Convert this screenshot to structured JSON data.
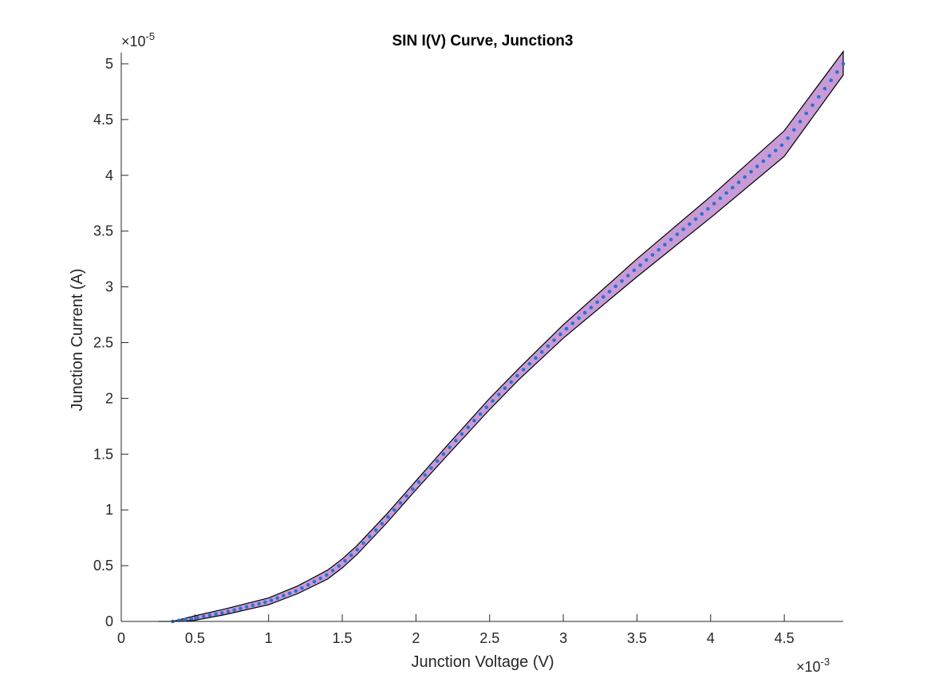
{
  "chart_data": {
    "type": "scatter",
    "title": "SIN I(V) Curve, Junction3",
    "xlabel": "Junction Voltage (V)",
    "ylabel": "Junction Current (A)",
    "xlim": [
      0,
      0.0049
    ],
    "ylim": [
      0,
      5.1e-05
    ],
    "x_multiplier_label": {
      "base": "×10",
      "exp": "-3"
    },
    "y_multiplier_label": {
      "base": "×10",
      "exp": "-5"
    },
    "x_ticks": [
      0,
      0.5,
      1,
      1.5,
      2,
      2.5,
      3,
      3.5,
      4,
      4.5
    ],
    "y_ticks": [
      0,
      0.5,
      1,
      1.5,
      2,
      2.5,
      3,
      3.5,
      4,
      4.5,
      5
    ],
    "x_tick_labels": [
      "0",
      "0.5",
      "1",
      "1.5",
      "2",
      "2.5",
      "3",
      "3.5",
      "4",
      "4.5"
    ],
    "y_tick_labels": [
      "0",
      "0.5",
      "1",
      "1.5",
      "2",
      "2.5",
      "3",
      "3.5",
      "4",
      "4.5",
      "5"
    ],
    "grid": false,
    "colors": {
      "points": "#2a72d6",
      "band_fill": "#c99bd6",
      "band_edge": "#000000",
      "axis": "#262626"
    },
    "curve": {
      "x": [
        0.00035,
        0.0005,
        0.0007,
        0.001,
        0.0012,
        0.0014,
        0.0015,
        0.0016,
        0.0018,
        0.002,
        0.0022,
        0.0025,
        0.0027,
        0.003,
        0.0035,
        0.004,
        0.0045,
        0.0049
      ],
      "y": [
        0.0,
        3e-07,
        8e-07,
        1.8e-06,
        2.8e-06,
        4.2e-06,
        5.2e-06,
        6.4e-06,
        9.2e-06,
        1.22e-05,
        1.52e-05,
        1.95e-05,
        2.22e-05,
        2.6e-05,
        3.17e-05,
        3.72e-05,
        4.29e-05,
        5e-05
      ]
    },
    "band": {
      "upper_y": [
        0.0,
        5e-07,
        1.1e-06,
        2.1e-06,
        3.2e-06,
        4.6e-06,
        5.6e-06,
        6.8e-06,
        9.6e-06,
        1.26e-05,
        1.56e-05,
        2e-05,
        2.27e-05,
        2.66e-05,
        3.25e-05,
        3.81e-05,
        4.4e-05,
        5.11e-05
      ],
      "lower_y": [
        0.0,
        1e-07,
        6e-07,
        1.5e-06,
        2.5e-06,
        3.8e-06,
        4.8e-06,
        6e-06,
        8.8e-06,
        1.18e-05,
        1.47e-05,
        1.9e-05,
        2.17e-05,
        2.54e-05,
        3.09e-05,
        3.62e-05,
        4.17e-05,
        4.9e-05
      ],
      "start_x": 0.00025
    },
    "point_count": 110
  }
}
